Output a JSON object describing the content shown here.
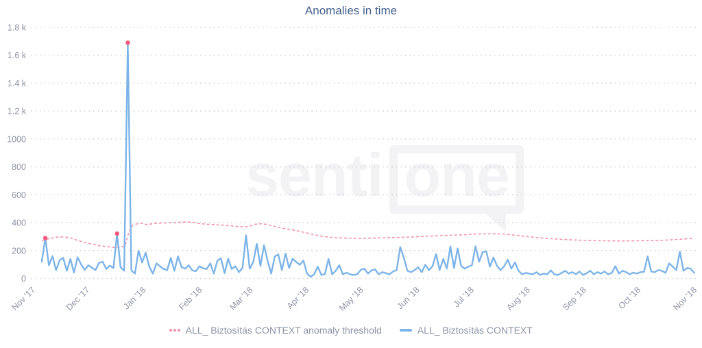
{
  "title": "Anomalies in time",
  "watermark": {
    "part1": "senti",
    "part2": "one"
  },
  "colors": {
    "title": "#45618c",
    "axis_label": "#8d93a7",
    "gridline": "#cacaca",
    "series_blue": "#7db4e8",
    "threshold_pink": "#f493ab",
    "anomaly_red": "#f7587c",
    "legend_text": "#8d95a8",
    "watermark": "#f3f3f6",
    "background": "#ffffff"
  },
  "legend": {
    "items": [
      {
        "label": "ALL_ Biztosítás CONTEXT anomaly threshold",
        "marker": "pink-dots"
      },
      {
        "label": "ALL_ Biztosítás CONTEXT",
        "marker": "blue-line"
      }
    ]
  },
  "chart_data": {
    "type": "line",
    "title": "Anomalies in time",
    "xlabel": "",
    "ylabel": "",
    "ylim": [
      0,
      1800
    ],
    "grid": "horizontal-dotted",
    "legend_position": "bottom",
    "total_days": 365,
    "y_ticks": [
      {
        "value": 1800,
        "label": "1.8 k"
      },
      {
        "value": 1600,
        "label": "1.6 k"
      },
      {
        "value": 1400,
        "label": "1.4 k"
      },
      {
        "value": 1200,
        "label": "1.2 k"
      },
      {
        "value": 1000,
        "label": "1000"
      },
      {
        "value": 800,
        "label": "800"
      },
      {
        "value": 600,
        "label": "600"
      },
      {
        "value": 400,
        "label": "400"
      },
      {
        "value": 200,
        "label": "200"
      },
      {
        "value": 0,
        "label": "0"
      }
    ],
    "x_months": [
      {
        "label": "Nov '17",
        "day": 0
      },
      {
        "label": "Dec '17",
        "day": 30
      },
      {
        "label": "Jan '18",
        "day": 61
      },
      {
        "label": "Feb '18",
        "day": 92
      },
      {
        "label": "Mar '18",
        "day": 120
      },
      {
        "label": "Apr '18",
        "day": 151
      },
      {
        "label": "May '18",
        "day": 181
      },
      {
        "label": "Jun '18",
        "day": 212
      },
      {
        "label": "Jul '18",
        "day": 242
      },
      {
        "label": "Aug '18",
        "day": 273
      },
      {
        "label": "Sep '18",
        "day": 304
      },
      {
        "label": "Oct '18",
        "day": 334
      },
      {
        "label": "Nov '18",
        "day": 365
      }
    ],
    "series": [
      {
        "name": "ALL_ Biztosítás CONTEXT anomaly threshold",
        "style": "dashed",
        "color": "#f493ab",
        "points": [
          [
            6,
            272
          ],
          [
            10,
            285
          ],
          [
            14,
            296
          ],
          [
            18,
            298
          ],
          [
            22,
            290
          ],
          [
            26,
            272
          ],
          [
            30,
            258
          ],
          [
            34,
            245
          ],
          [
            38,
            234
          ],
          [
            42,
            228
          ],
          [
            46,
            222
          ],
          [
            50,
            226
          ],
          [
            52,
            232
          ],
          [
            54,
            330
          ],
          [
            56,
            380
          ],
          [
            58,
            390
          ],
          [
            61,
            396
          ],
          [
            64,
            386
          ],
          [
            67,
            392
          ],
          [
            70,
            396
          ],
          [
            74,
            398
          ],
          [
            78,
            400
          ],
          [
            82,
            402
          ],
          [
            86,
            406
          ],
          [
            90,
            400
          ],
          [
            94,
            392
          ],
          [
            98,
            388
          ],
          [
            102,
            385
          ],
          [
            106,
            382
          ],
          [
            110,
            378
          ],
          [
            114,
            372
          ],
          [
            118,
            370
          ],
          [
            121,
            376
          ],
          [
            124,
            389
          ],
          [
            127,
            393
          ],
          [
            130,
            388
          ],
          [
            133,
            378
          ],
          [
            136,
            368
          ],
          [
            140,
            358
          ],
          [
            144,
            349
          ],
          [
            148,
            339
          ],
          [
            152,
            327
          ],
          [
            156,
            314
          ],
          [
            160,
            304
          ],
          [
            164,
            297
          ],
          [
            168,
            292
          ],
          [
            172,
            290
          ],
          [
            178,
            288
          ],
          [
            184,
            288
          ],
          [
            190,
            290
          ],
          [
            196,
            292
          ],
          [
            202,
            294
          ],
          [
            208,
            296
          ],
          [
            214,
            300
          ],
          [
            220,
            304
          ],
          [
            226,
            307
          ],
          [
            232,
            310
          ],
          [
            238,
            313
          ],
          [
            244,
            317
          ],
          [
            250,
            320
          ],
          [
            256,
            320
          ],
          [
            262,
            317
          ],
          [
            268,
            309
          ],
          [
            274,
            300
          ],
          [
            280,
            292
          ],
          [
            286,
            286
          ],
          [
            292,
            281
          ],
          [
            298,
            277
          ],
          [
            304,
            274
          ],
          [
            310,
            272
          ],
          [
            316,
            270
          ],
          [
            322,
            269
          ],
          [
            328,
            269
          ],
          [
            334,
            270
          ],
          [
            340,
            272
          ],
          [
            346,
            273
          ],
          [
            352,
            276
          ],
          [
            358,
            281
          ],
          [
            365,
            287
          ]
        ]
      },
      {
        "name": "ALL_ Biztosítás CONTEXT",
        "style": "solid",
        "color": "#7db4e8",
        "start_day": 6,
        "end_day": 366,
        "values": [
          120,
          290,
          95,
          160,
          60,
          130,
          148,
          55,
          140,
          42,
          152,
          100,
          62,
          95,
          78,
          60,
          112,
          120,
          68,
          92,
          74,
          322,
          80,
          55,
          1690,
          58,
          35,
          200,
          115,
          185,
          85,
          35,
          108,
          88,
          68,
          60,
          148,
          55,
          158,
          82,
          70,
          95,
          58,
          52,
          88,
          73,
          68,
          108,
          35,
          128,
          145,
          38,
          142,
          68,
          88,
          45,
          75,
          310,
          70,
          118,
          248,
          90,
          238,
          128,
          35,
          158,
          172,
          60,
          178,
          75,
          142,
          118,
          98,
          128,
          35,
          12,
          30,
          85,
          25,
          32,
          140,
          30,
          55,
          95,
          30,
          42,
          30,
          25,
          30,
          62,
          70,
          35,
          58,
          65,
          30,
          45,
          38,
          30,
          50,
          60,
          225,
          150,
          55,
          45,
          60,
          80,
          45,
          98,
          60,
          88,
          175,
          60,
          140,
          70,
          230,
          75,
          215,
          90,
          70,
          85,
          95,
          230,
          120,
          190,
          195,
          85,
          150,
          90,
          60,
          88,
          135,
          70,
          115,
          55,
          30,
          40,
          35,
          30,
          45,
          25,
          35,
          30,
          58,
          30,
          25,
          40,
          55,
          35,
          45,
          30,
          50,
          25,
          38,
          55,
          30,
          45,
          35,
          50,
          30,
          40,
          88,
          35,
          55,
          45,
          30,
          42,
          35,
          45,
          48,
          158,
          50,
          45,
          60,
          55,
          40,
          108,
          85,
          60,
          192,
          55,
          75,
          70,
          40
        ]
      }
    ],
    "anomalies": {
      "description": "red markers on points exceeding the anomaly threshold",
      "color": "#f7587c",
      "indices": [
        1,
        21,
        24
      ],
      "values": [
        290,
        322,
        1690
      ]
    }
  }
}
